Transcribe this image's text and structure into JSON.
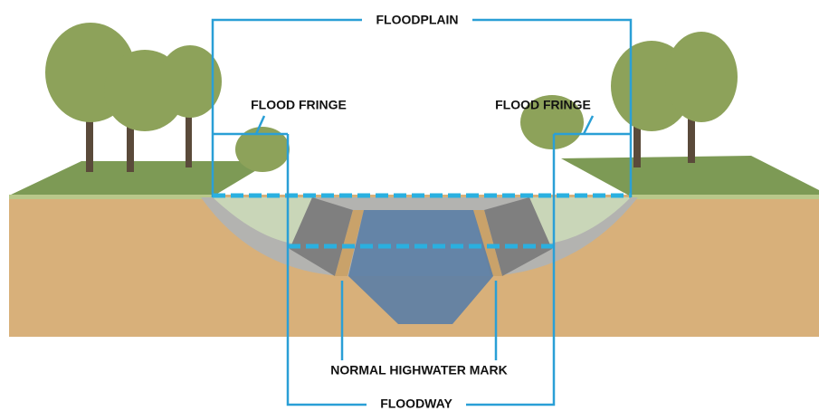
{
  "labels": {
    "floodplain": "FLOODPLAIN",
    "flood_fringe_left": "FLOOD FRINGE",
    "flood_fringe_right": "FLOOD FRINGE",
    "normal_highwater_mark": "NORMAL HIGHWATER MARK",
    "floodway": "FLOODWAY"
  }
}
